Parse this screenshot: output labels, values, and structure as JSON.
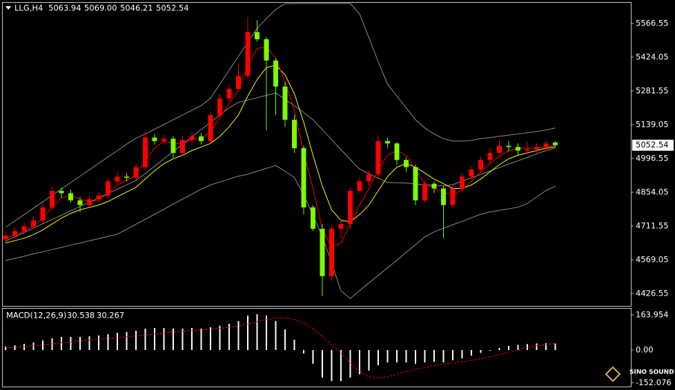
{
  "header": {
    "symbol": "LLG,H4",
    "ohlc": [
      "5063.94",
      "5069.00",
      "5046.21",
      "5052.54"
    ]
  },
  "watermark": "SINO SOUND",
  "chart_data": [
    {
      "type": "candlestick",
      "up_color": "#ff0000",
      "down_color": "#7cfc00",
      "ylim": [
        4374.2,
        5656.7
      ],
      "yticks": [
        5566.55,
        5424.05,
        5281.55,
        5139.05,
        4996.55,
        4854.05,
        4711.55,
        4569.05,
        4426.55
      ],
      "open": [
        4655,
        4671,
        4690,
        4710,
        4735,
        4790,
        4860,
        4850,
        4820,
        4800,
        4825,
        4840,
        4900,
        4920,
        4915,
        4960,
        5085,
        5070,
        5080,
        5020,
        5075,
        5090,
        5070,
        5180,
        5250,
        5290,
        5345,
        5530,
        5500,
        5410,
        5300,
        5160,
        5040,
        4790,
        4700,
        4500,
        4700,
        4720,
        4860,
        4900,
        4930,
        5070,
        5060,
        4990,
        4960,
        4820,
        4890,
        4870,
        4800,
        4870,
        4920,
        4950,
        4990,
        5020,
        5050,
        5045,
        5030,
        5035,
        5045,
        5063.94
      ],
      "high": [
        4685,
        4705,
        4725,
        4750,
        4810,
        4880,
        4875,
        4865,
        4835,
        4840,
        4855,
        4915,
        4940,
        4935,
        4975,
        5110,
        5100,
        5095,
        5090,
        5090,
        5110,
        5105,
        5195,
        5270,
        5310,
        5400,
        5593,
        5580,
        5510,
        5420,
        5320,
        5180,
        5050,
        4800,
        4720,
        4710,
        4740,
        4875,
        4915,
        4945,
        5095,
        5085,
        5065,
        5000,
        4970,
        4905,
        4900,
        4880,
        4885,
        4935,
        4965,
        5005,
        5040,
        5075,
        5070,
        5060,
        5070,
        5060,
        5070,
        5069
      ],
      "low": [
        4640,
        4660,
        4680,
        4700,
        4725,
        4780,
        4830,
        4810,
        4770,
        4790,
        4815,
        4830,
        4890,
        4900,
        4905,
        4950,
        5055,
        5060,
        5000,
        5010,
        5060,
        5055,
        5060,
        5170,
        5240,
        5280,
        5335,
        5490,
        5115,
        5180,
        5130,
        5020,
        4760,
        4690,
        4415,
        4480,
        4660,
        4700,
        4850,
        4880,
        4910,
        5040,
        4970,
        4940,
        4800,
        4810,
        4850,
        4660,
        4790,
        4855,
        4905,
        4935,
        4975,
        5005,
        5025,
        5010,
        5015,
        5020,
        5030,
        5046.21
      ],
      "close": [
        4671,
        4690,
        4710,
        4735,
        4790,
        4860,
        4850,
        4820,
        4800,
        4825,
        4840,
        4900,
        4920,
        4915,
        4960,
        5085,
        5070,
        5080,
        5020,
        5075,
        5090,
        5070,
        5180,
        5250,
        5290,
        5345,
        5530,
        5500,
        5410,
        5300,
        5160,
        5040,
        4790,
        4700,
        4500,
        4700,
        4720,
        4860,
        4900,
        4930,
        5070,
        5060,
        4990,
        4960,
        4820,
        4890,
        4870,
        4800,
        4870,
        4920,
        4950,
        4990,
        5020,
        5050,
        5045,
        5030,
        5035,
        5045,
        5060,
        5052.54
      ],
      "overlays": [
        {
          "color": "#8c8c8c",
          "values": [
            4706,
            4733,
            4760,
            4787,
            4814,
            4841,
            4868,
            4895,
            4922,
            4949,
            4976,
            5003,
            5030,
            5057,
            5082,
            5100,
            5120,
            5140,
            5160,
            5180,
            5200,
            5220,
            5251,
            5310,
            5369,
            5428,
            5487,
            5546,
            5587,
            5626,
            5650,
            5650,
            5651,
            5651,
            5651,
            5651,
            5651,
            5651,
            5606,
            5506,
            5405,
            5310,
            5260,
            5210,
            5160,
            5125,
            5100,
            5080,
            5070,
            5070,
            5073,
            5080,
            5085,
            5090,
            5095,
            5100,
            5105,
            5110,
            5117,
            5125
          ]
        },
        {
          "color": "#8c8c8c",
          "values": [
            4648,
            4666,
            4684,
            4703,
            4721,
            4739,
            4757,
            4776,
            4794,
            4812,
            4830,
            4849,
            4867,
            4885,
            4904,
            4933,
            4964,
            4995,
            5026,
            5057,
            5088,
            5119,
            5149,
            5180,
            5211,
            5233,
            5243,
            5253,
            5263,
            5273,
            5246,
            5219,
            5191,
            5160,
            5118,
            5076,
            5034,
            4992,
            4952,
            4933,
            4913,
            4895,
            4894,
            4893,
            4888,
            4886,
            4883,
            4881,
            4886,
            4901,
            4915,
            4929,
            4944,
            4958,
            4973,
            4987,
            5001,
            5016,
            5030,
            5040
          ]
        },
        {
          "color": "#8c8c8c",
          "values": [
            4566,
            4575,
            4584,
            4594,
            4603,
            4612,
            4621,
            4631,
            4640,
            4649,
            4658,
            4668,
            4677,
            4698,
            4719,
            4740,
            4761,
            4782,
            4804,
            4825,
            4846,
            4867,
            4885,
            4897,
            4910,
            4922,
            4930,
            4943,
            4955,
            4967,
            4943,
            4916,
            4844,
            4756,
            4668,
            4556,
            4438,
            4406,
            4439,
            4471,
            4503,
            4535,
            4567,
            4600,
            4633,
            4666,
            4687,
            4702,
            4717,
            4731,
            4746,
            4761,
            4771,
            4778,
            4784,
            4791,
            4806,
            4834,
            4861,
            4880
          ]
        },
        {
          "color": "#ffff00",
          "values": [
            4640,
            4650,
            4660,
            4675,
            4695,
            4720,
            4745,
            4765,
            4780,
            4790,
            4800,
            4815,
            4835,
            4855,
            4875,
            4910,
            4945,
            4975,
            4995,
            5010,
            5030,
            5045,
            5060,
            5090,
            5130,
            5180,
            5260,
            5330,
            5380,
            5390,
            5350,
            5270,
            5150,
            5010,
            4880,
            4780,
            4735,
            4730,
            4760,
            4800,
            4860,
            4920,
            4960,
            4975,
            4960,
            4935,
            4910,
            4890,
            4870,
            4870,
            4885,
            4910,
            4940,
            4970,
            4995,
            5010,
            5020,
            5030,
            5040,
            5045
          ]
        },
        {
          "color": "#ff0000",
          "values": [
            4660,
            4672,
            4690,
            4712,
            4745,
            4790,
            4830,
            4840,
            4825,
            4815,
            4820,
            4850,
            4885,
            4905,
            4925,
            4990,
            5040,
            5070,
            5060,
            5060,
            5075,
            5080,
            5110,
            5170,
            5230,
            5285,
            5390,
            5460,
            5470,
            5420,
            5320,
            5200,
            5020,
            4870,
            4700,
            4620,
            4640,
            4720,
            4800,
            4870,
            4950,
            5010,
            5030,
            5010,
            4950,
            4890,
            4870,
            4855,
            4840,
            4865,
            4900,
            4940,
            4975,
            5005,
            5030,
            5040,
            5040,
            5040,
            5045,
            5050
          ]
        }
      ]
    },
    {
      "type": "macd",
      "title": "MACD(12,26,9)",
      "ylim": [
        -167.2,
        196.1
      ],
      "yticks": [
        163.954,
        {
          "value": 0,
          "label": "0.00"
        },
        -152.076
      ],
      "histogram": {
        "color": "#ffffff",
        "values": [
          16,
          22,
          29,
          35,
          45,
          55,
          61,
          61,
          61,
          64,
          68,
          74,
          80,
          84,
          90,
          100,
          103,
          103,
          100,
          100,
          103,
          100,
          106,
          113,
          122,
          135,
          161,
          167,
          161,
          135,
          96,
          48,
          -16,
          -64,
          -129,
          -145,
          -145,
          -129,
          -113,
          -96,
          -71,
          -58,
          -58,
          -58,
          -64,
          -58,
          -55,
          -58,
          -48,
          -39,
          -26,
          -13,
          -3,
          10,
          19,
          24,
          28,
          31,
          32,
          30.538
        ]
      },
      "signal": {
        "color": "#ff0000",
        "values": [
          10,
          13,
          16,
          20,
          24,
          29,
          34,
          38,
          42,
          46,
          50,
          54,
          58,
          62,
          66,
          70,
          75,
          80,
          84,
          88,
          91,
          94,
          97,
          101,
          106,
          112,
          121,
          132,
          142,
          148,
          150,
          142,
          125,
          100,
          65,
          25,
          -15,
          -60,
          -100,
          -125,
          -130,
          -125,
          -112,
          -100,
          -90,
          -80,
          -72,
          -66,
          -60,
          -55,
          -48,
          -40,
          -32,
          -22,
          -10,
          2,
          12,
          20,
          26,
          30.267
        ]
      }
    }
  ]
}
